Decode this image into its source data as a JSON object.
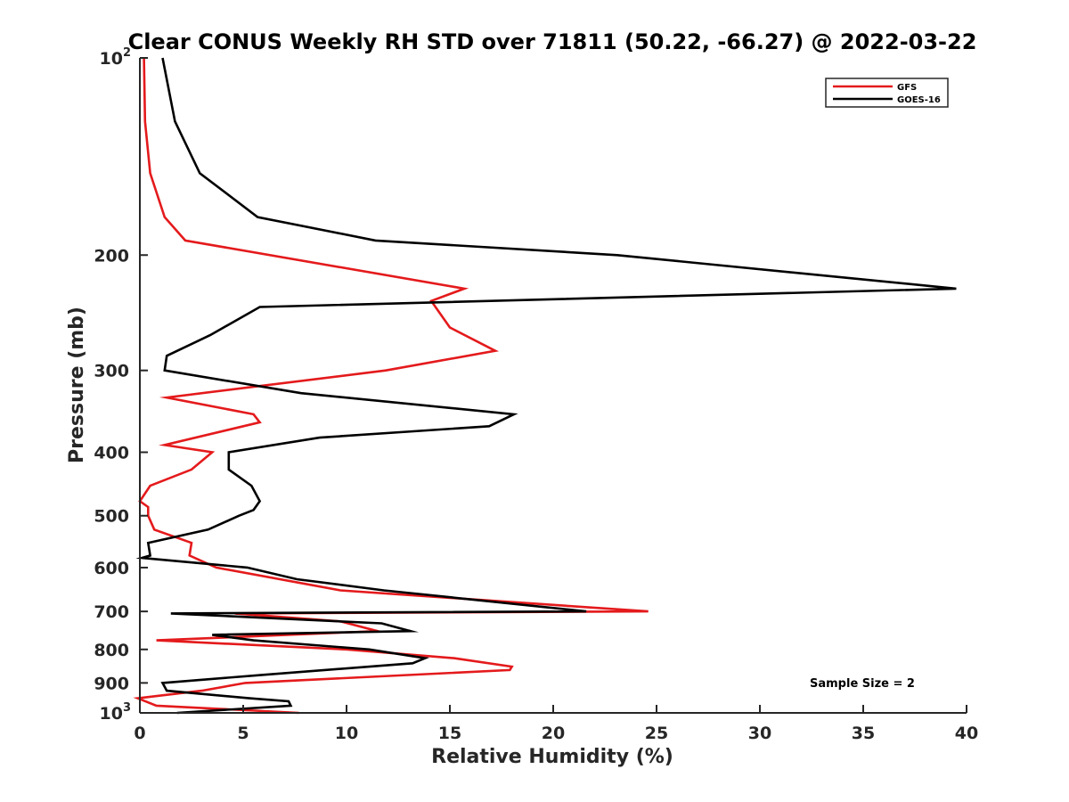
{
  "chart_data": {
    "type": "line",
    "title": "Clear CONUS Weekly RH STD over 71811 (50.22, -66.27) @ 2022-03-22",
    "xlabel": "Relative Humidity (%)",
    "ylabel": "Pressure (mb)",
    "xlim": [
      0,
      40
    ],
    "ylim": [
      100,
      1000
    ],
    "y_scale": "log",
    "y_reversed": true,
    "grid": false,
    "legend_position": "top-right",
    "x_ticks": [
      "0",
      "5",
      "10",
      "15",
      "20",
      "25",
      "30",
      "35",
      "40"
    ],
    "x_tick_values": [
      0,
      5,
      10,
      15,
      20,
      25,
      30,
      35,
      40
    ],
    "y_ticks": [
      "200",
      "300",
      "400",
      "500",
      "600",
      "700",
      "800",
      "900"
    ],
    "y_tick_values": [
      200,
      300,
      400,
      500,
      600,
      700,
      800,
      900
    ],
    "y_ticks_power": [
      {
        "base": "10",
        "exp": "2",
        "value": 100
      },
      {
        "base": "10",
        "exp": "3",
        "value": 1000
      }
    ],
    "annotation": "Sample Size = 2",
    "series": [
      {
        "name": "GFS",
        "color": "#e41a1c",
        "points": [
          [
            0.2,
            100
          ],
          [
            0.25,
            125
          ],
          [
            0.5,
            150
          ],
          [
            1.2,
            175
          ],
          [
            2.2,
            190
          ],
          [
            15.7,
            225
          ],
          [
            14.1,
            235
          ],
          [
            15.0,
            258
          ],
          [
            17.2,
            280
          ],
          [
            11.9,
            300
          ],
          [
            1.3,
            330
          ],
          [
            5.5,
            350
          ],
          [
            5.8,
            360
          ],
          [
            1.2,
            390
          ],
          [
            3.5,
            400
          ],
          [
            2.5,
            425
          ],
          [
            0.5,
            450
          ],
          [
            0,
            475
          ],
          [
            0.4,
            485
          ],
          [
            0.4,
            500
          ],
          [
            0.7,
            525
          ],
          [
            2.5,
            550
          ],
          [
            2.4,
            575
          ],
          [
            3.7,
            600
          ],
          [
            9.7,
            650
          ],
          [
            24.6,
            700
          ],
          [
            4.6,
            705
          ],
          [
            9.7,
            725
          ],
          [
            11.5,
            750
          ],
          [
            0.8,
            775
          ],
          [
            10.0,
            800
          ],
          [
            15.2,
            825
          ],
          [
            18.0,
            850
          ],
          [
            17.9,
            860
          ],
          [
            5.1,
            900
          ],
          [
            3.0,
            925
          ],
          [
            -0.1,
            950
          ],
          [
            0.8,
            975
          ],
          [
            7.7,
            1000
          ]
        ]
      },
      {
        "name": "GOES-16",
        "color": "#000000",
        "points": [
          [
            1.1,
            100
          ],
          [
            1.7,
            125
          ],
          [
            2.9,
            150
          ],
          [
            5.7,
            175
          ],
          [
            11.4,
            190
          ],
          [
            23.1,
            200
          ],
          [
            39.5,
            225
          ],
          [
            5.8,
            240
          ],
          [
            3.4,
            265
          ],
          [
            1.3,
            285
          ],
          [
            1.2,
            300
          ],
          [
            7.8,
            325
          ],
          [
            18.1,
            350
          ],
          [
            16.9,
            365
          ],
          [
            8.7,
            380
          ],
          [
            4.3,
            400
          ],
          [
            4.3,
            425
          ],
          [
            5.4,
            450
          ],
          [
            5.8,
            475
          ],
          [
            5.5,
            490
          ],
          [
            4.8,
            500
          ],
          [
            3.3,
            525
          ],
          [
            0.4,
            550
          ],
          [
            0.5,
            575
          ],
          [
            0.1,
            580
          ],
          [
            5.2,
            600
          ],
          [
            7.6,
            625
          ],
          [
            11.8,
            650
          ],
          [
            21.6,
            700
          ],
          [
            1.5,
            705
          ],
          [
            11.7,
            730
          ],
          [
            13.1,
            750
          ],
          [
            3.5,
            760
          ],
          [
            5.5,
            775
          ],
          [
            11.1,
            800
          ],
          [
            13.8,
            825
          ],
          [
            13.2,
            840
          ],
          [
            5.9,
            875
          ],
          [
            1.1,
            900
          ],
          [
            1.3,
            925
          ],
          [
            5.3,
            950
          ],
          [
            7.2,
            960
          ],
          [
            7.3,
            975
          ],
          [
            1.8,
            1000
          ]
        ]
      }
    ]
  }
}
